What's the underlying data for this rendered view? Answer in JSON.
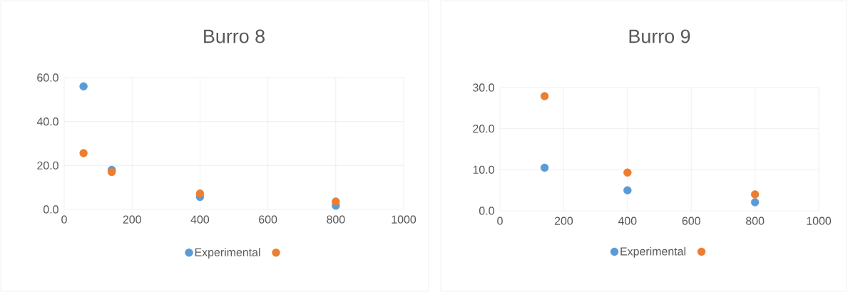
{
  "chart_data": [
    {
      "type": "scatter",
      "title": "Burro 8",
      "xlim": [
        0,
        1000
      ],
      "xticks": [
        0,
        200,
        400,
        600,
        800,
        1000
      ],
      "ylim": [
        0,
        60
      ],
      "yticks": [
        {
          "value": 0,
          "label": "0.0"
        },
        {
          "value": 20,
          "label": "20.0"
        },
        {
          "value": 40,
          "label": "40.0"
        },
        {
          "value": 60,
          "label": "60.0"
        }
      ],
      "grid": true,
      "legend": "bottom",
      "series": [
        {
          "name": "Experimental",
          "color": "#5b9bd5",
          "x": [
            57,
            140,
            400,
            800
          ],
          "values": [
            56,
            18,
            5.7,
            1.7
          ]
        },
        {
          "color": "#ed7d31",
          "x": [
            57,
            140,
            400,
            800
          ],
          "values": [
            25.6,
            17,
            7.2,
            3.6
          ]
        }
      ]
    },
    {
      "type": "scatter",
      "title": "Burro 9",
      "xlim": [
        0,
        1000
      ],
      "xticks": [
        0,
        200,
        400,
        600,
        800,
        1000
      ],
      "ylim": [
        0,
        30
      ],
      "yticks": [
        {
          "value": 0,
          "label": "0.0"
        },
        {
          "value": 10,
          "label": "10.0"
        },
        {
          "value": 20,
          "label": "20.0"
        },
        {
          "value": 30,
          "label": "30.0"
        }
      ],
      "grid": true,
      "legend": "bottom",
      "series": [
        {
          "name": "Experimental",
          "color": "#5b9bd5",
          "x": [
            140,
            400,
            800
          ],
          "values": [
            10.5,
            5.0,
            2.1
          ]
        },
        {
          "color": "#ed7d31",
          "x": [
            140,
            400,
            800
          ],
          "values": [
            27.9,
            9.3,
            4.0
          ]
        }
      ]
    }
  ]
}
